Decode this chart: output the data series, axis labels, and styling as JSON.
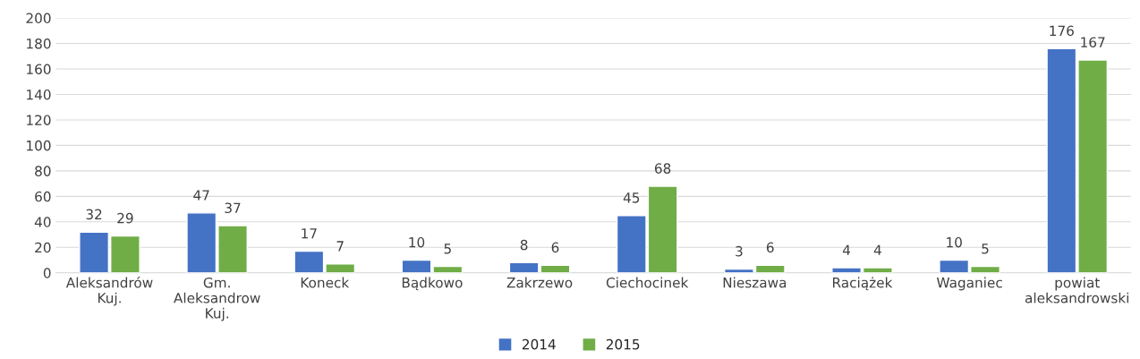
{
  "chart_data": {
    "type": "bar",
    "categories": [
      "Aleksandrów Kuj.",
      "Gm. Aleksandrow Kuj.",
      "Koneck",
      "Bądkowo",
      "Zakrzewo",
      "Ciechocinek",
      "Nieszawa",
      "Raciążek",
      "Waganiec",
      "powiat aleksandrowski"
    ],
    "series": [
      {
        "name": "2014",
        "color": "#4472c4",
        "values": [
          32,
          47,
          17,
          10,
          8,
          45,
          3,
          4,
          10,
          176
        ]
      },
      {
        "name": "2015",
        "color": "#70ad47",
        "values": [
          29,
          37,
          7,
          5,
          6,
          68,
          6,
          4,
          5,
          167
        ]
      }
    ],
    "ylim": [
      0,
      200
    ],
    "yticks": [
      0,
      20,
      40,
      60,
      80,
      100,
      120,
      140,
      160,
      180,
      200
    ],
    "grid": "y",
    "legend": "bottom",
    "data_labels": true
  }
}
